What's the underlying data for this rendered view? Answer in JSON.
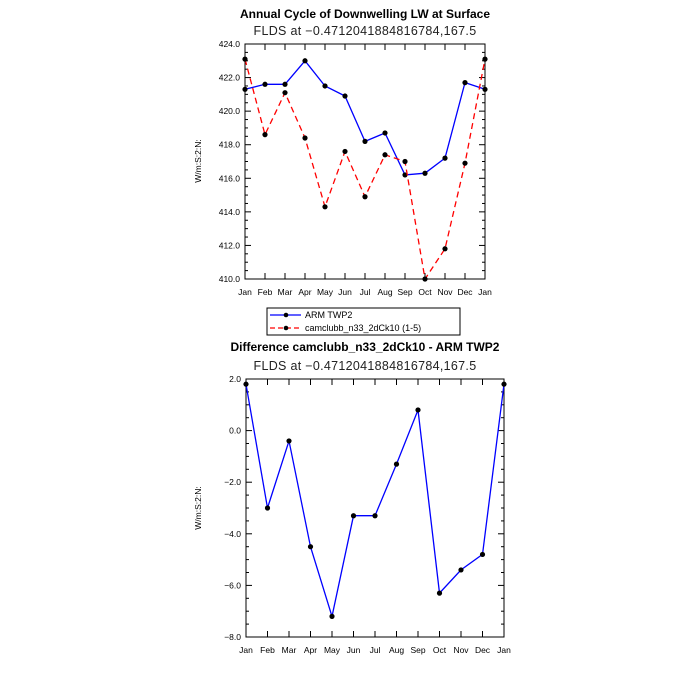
{
  "chart_data": [
    {
      "type": "line",
      "title": "Annual Cycle of Downwelling LW at Surface",
      "subtitle": "FLDS at −0.4712041884816784,167.5",
      "ylabel": "W/m:S:2:N:",
      "xlabel": "",
      "ylim": [
        410.0,
        424.0
      ],
      "yticks": [
        "410.0",
        "412.0",
        "414.0",
        "416.0",
        "418.0",
        "420.0",
        "422.0",
        "424.0"
      ],
      "categories": [
        "Jan",
        "Feb",
        "Mar",
        "Apr",
        "May",
        "Jun",
        "Jul",
        "Aug",
        "Sep",
        "Oct",
        "Nov",
        "Dec",
        "Jan"
      ],
      "legend_position": "below",
      "grid": false,
      "series": [
        {
          "name": "ARM TWP2",
          "color": "#0000ff",
          "dashed": false,
          "values": [
            421.3,
            421.6,
            421.6,
            423.0,
            421.5,
            420.9,
            418.2,
            418.7,
            416.2,
            416.3,
            417.2,
            421.7,
            421.3
          ]
        },
        {
          "name": "camclubb_n33_2dCk10 (1-5)",
          "color": "#ff0000",
          "dashed": true,
          "values": [
            423.1,
            418.6,
            421.1,
            418.4,
            414.3,
            417.6,
            414.9,
            417.4,
            417.0,
            410.0,
            411.8,
            416.9,
            423.1
          ]
        }
      ]
    },
    {
      "type": "line",
      "title": "Difference camclubb_n33_2dCk10 - ARM TWP2",
      "subtitle": "FLDS at −0.4712041884816784,167.5",
      "ylabel": "W/m:S:2:N:",
      "xlabel": "",
      "ylim": [
        -8.0,
        2.0
      ],
      "yticks": [
        "−8.0",
        "−6.0",
        "−4.0",
        "−2.0",
        "0.0",
        "2.0"
      ],
      "categories": [
        "Jan",
        "Feb",
        "Mar",
        "Apr",
        "May",
        "Jun",
        "Jul",
        "Aug",
        "Sep",
        "Oct",
        "Nov",
        "Dec",
        "Jan"
      ],
      "grid": false,
      "series": [
        {
          "color": "#0000ff",
          "dashed": false,
          "values": [
            1.8,
            -3.0,
            -0.4,
            -4.5,
            -7.2,
            -3.3,
            -3.3,
            -1.3,
            0.8,
            -6.3,
            -5.4,
            -4.8,
            1.8
          ]
        }
      ]
    }
  ]
}
